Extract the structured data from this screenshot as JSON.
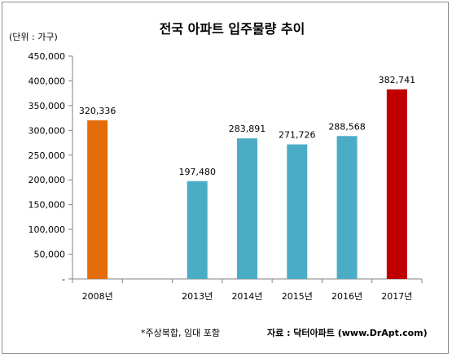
{
  "chart_data": {
    "type": "bar",
    "title": "전국 아파트 입주물량 추이",
    "unit_label": "(단위 : 가구)",
    "categories": [
      "2008년",
      "",
      "2013년",
      "2014년",
      "2015년",
      "2016년",
      "2017년"
    ],
    "values": [
      320336,
      null,
      197480,
      283891,
      271726,
      288568,
      382741
    ],
    "data_labels": [
      "320,336",
      "",
      "197,480",
      "283,891",
      "271,726",
      "288,568",
      "382,741"
    ],
    "bar_colors": [
      "#e46c0a",
      null,
      "#4bacc6",
      "#4bacc6",
      "#4bacc6",
      "#4bacc6",
      "#c00000"
    ],
    "ylim": [
      0,
      450000
    ],
    "yticks": [
      0,
      50000,
      100000,
      150000,
      200000,
      250000,
      300000,
      350000,
      400000,
      450000
    ],
    "ytick_labels": [
      "-",
      "50,000",
      "100,000",
      "150,000",
      "200,000",
      "250,000",
      "300,000",
      "350,000",
      "400,000",
      "450,000"
    ],
    "grid": false,
    "legend": "none",
    "footnote": "*주상복합, 임대 포함",
    "source": "자료 : 닥터아파트 (www.DrApt.com)"
  }
}
